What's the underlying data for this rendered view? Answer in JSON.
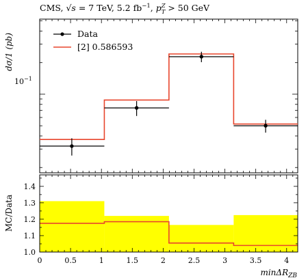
{
  "chart_data": [
    {
      "type": "line",
      "role": "main",
      "title": "CMS, √s = 7 TeV, 5.2 fb⁻¹, pᵀ^Z > 50 GeV",
      "title_parts": {
        "cms": "CMS,",
        "sqrt_s": "√s",
        "energy": " = 7 TeV, 5.2 fb",
        "lumi_sup": "−1",
        "comma": ",",
        "pt": "p",
        "pt_sub": "T",
        "pt_sup": "Z",
        "cut": " > 50 GeV"
      },
      "ylabel": "dσ/1 (pb)",
      "yscale": "log",
      "ylim": [
        0.0178,
        0.52
      ],
      "y_tick_label": "10⁻¹",
      "y_tick_label_base": "10",
      "y_tick_label_exp": "−1",
      "xlim": [
        0,
        4.18
      ],
      "bin_edges": [
        0,
        1.047,
        2.094,
        3.142,
        4.18
      ],
      "legend": [
        {
          "label": "Data",
          "style": "points",
          "color": "#000000"
        },
        {
          "label": "[2] 0.586593",
          "style": "line",
          "color": "#e8452c"
        }
      ],
      "legend_position": "top-left",
      "series": [
        {
          "name": "Data",
          "x": [
            0.52,
            1.57,
            2.62,
            3.66
          ],
          "values": [
            0.032,
            0.074,
            0.228,
            0.05
          ],
          "y_err_low": [
            0.006,
            0.012,
            0.026,
            0.007
          ],
          "y_err_high": [
            0.006,
            0.012,
            0.026,
            0.007
          ]
        },
        {
          "name": "[2] 0.586593",
          "values": [
            0.037,
            0.088,
            0.242,
            0.052
          ]
        }
      ]
    },
    {
      "type": "line",
      "role": "ratio",
      "ylabel": "MC/Data",
      "xlabel": "minΔR_ZB",
      "xlabel_main": "minΔR",
      "xlabel_sub": "ZB",
      "ylim": [
        1.0,
        1.47
      ],
      "xlim": [
        0,
        4.18
      ],
      "bin_edges": [
        0,
        1.047,
        2.094,
        3.142,
        4.18
      ],
      "x_ticks": [
        0,
        0.5,
        1,
        1.5,
        2,
        2.5,
        3,
        3.5,
        4
      ],
      "x_tick_labels": [
        "0",
        "0.5",
        "1",
        "1.5",
        "2",
        "2.5",
        "3",
        "3.5",
        "4"
      ],
      "y_ticks": [
        1.0,
        1.1,
        1.2,
        1.3,
        1.4
      ],
      "y_tick_labels": [
        "1.0",
        "1.1",
        "1.2",
        "1.3",
        "1.4"
      ],
      "band_color": "#ffff00",
      "band_upper": [
        1.31,
        1.22,
        1.165,
        1.225
      ],
      "series": [
        {
          "name": "[2] 0.586593",
          "values": [
            1.175,
            1.185,
            1.055,
            1.04
          ]
        }
      ]
    }
  ]
}
